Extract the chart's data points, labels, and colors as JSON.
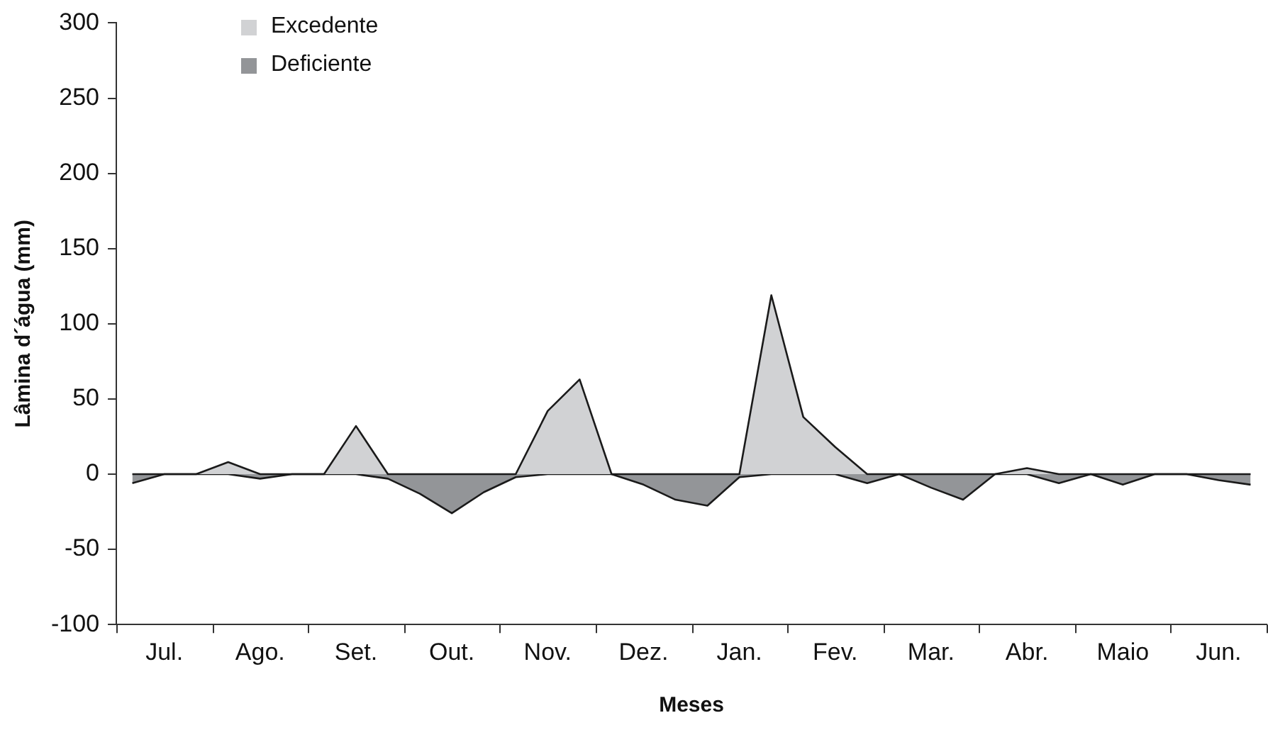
{
  "chart_data": {
    "type": "area",
    "xlabel": "Meses",
    "ylabel": "Lâmina d´água (mm)",
    "categories": [
      null,
      "Jul.",
      null,
      null,
      "Ago.",
      null,
      null,
      "Set.",
      null,
      null,
      "Out.",
      null,
      null,
      "Nov.",
      null,
      null,
      "Dez.",
      null,
      null,
      "Jan.",
      null,
      null,
      "Fev.",
      null,
      null,
      "Mar.",
      null,
      null,
      "Abr.",
      null,
      null,
      "Maio",
      null,
      null,
      "Jun.",
      null
    ],
    "series": [
      {
        "name": "Excedente",
        "color": "#d1d2d4",
        "values": [
          0,
          0,
          0,
          8,
          0,
          0,
          0,
          32,
          0,
          0,
          0,
          0,
          0,
          42,
          63,
          0,
          0,
          0,
          0,
          0,
          119,
          38,
          18,
          0,
          0,
          0,
          0,
          0,
          4,
          0,
          0,
          0,
          0,
          0,
          0,
          0
        ]
      },
      {
        "name": "Deficiente",
        "color": "#939598",
        "values": [
          -6,
          0,
          0,
          0,
          -3,
          0,
          0,
          0,
          -3,
          -13,
          -26,
          -12,
          -2,
          0,
          0,
          0,
          -7,
          -17,
          -21,
          -2,
          0,
          0,
          0,
          -6,
          0,
          -9,
          -17,
          0,
          0,
          -6,
          0,
          -7,
          0,
          0,
          -4,
          -7
        ]
      }
    ],
    "ylim": [
      -100,
      300
    ],
    "yticks": [
      -100,
      -50,
      0,
      50,
      100,
      150,
      200,
      250,
      300
    ],
    "grid": false,
    "legend": "top left",
    "marker": "none"
  }
}
